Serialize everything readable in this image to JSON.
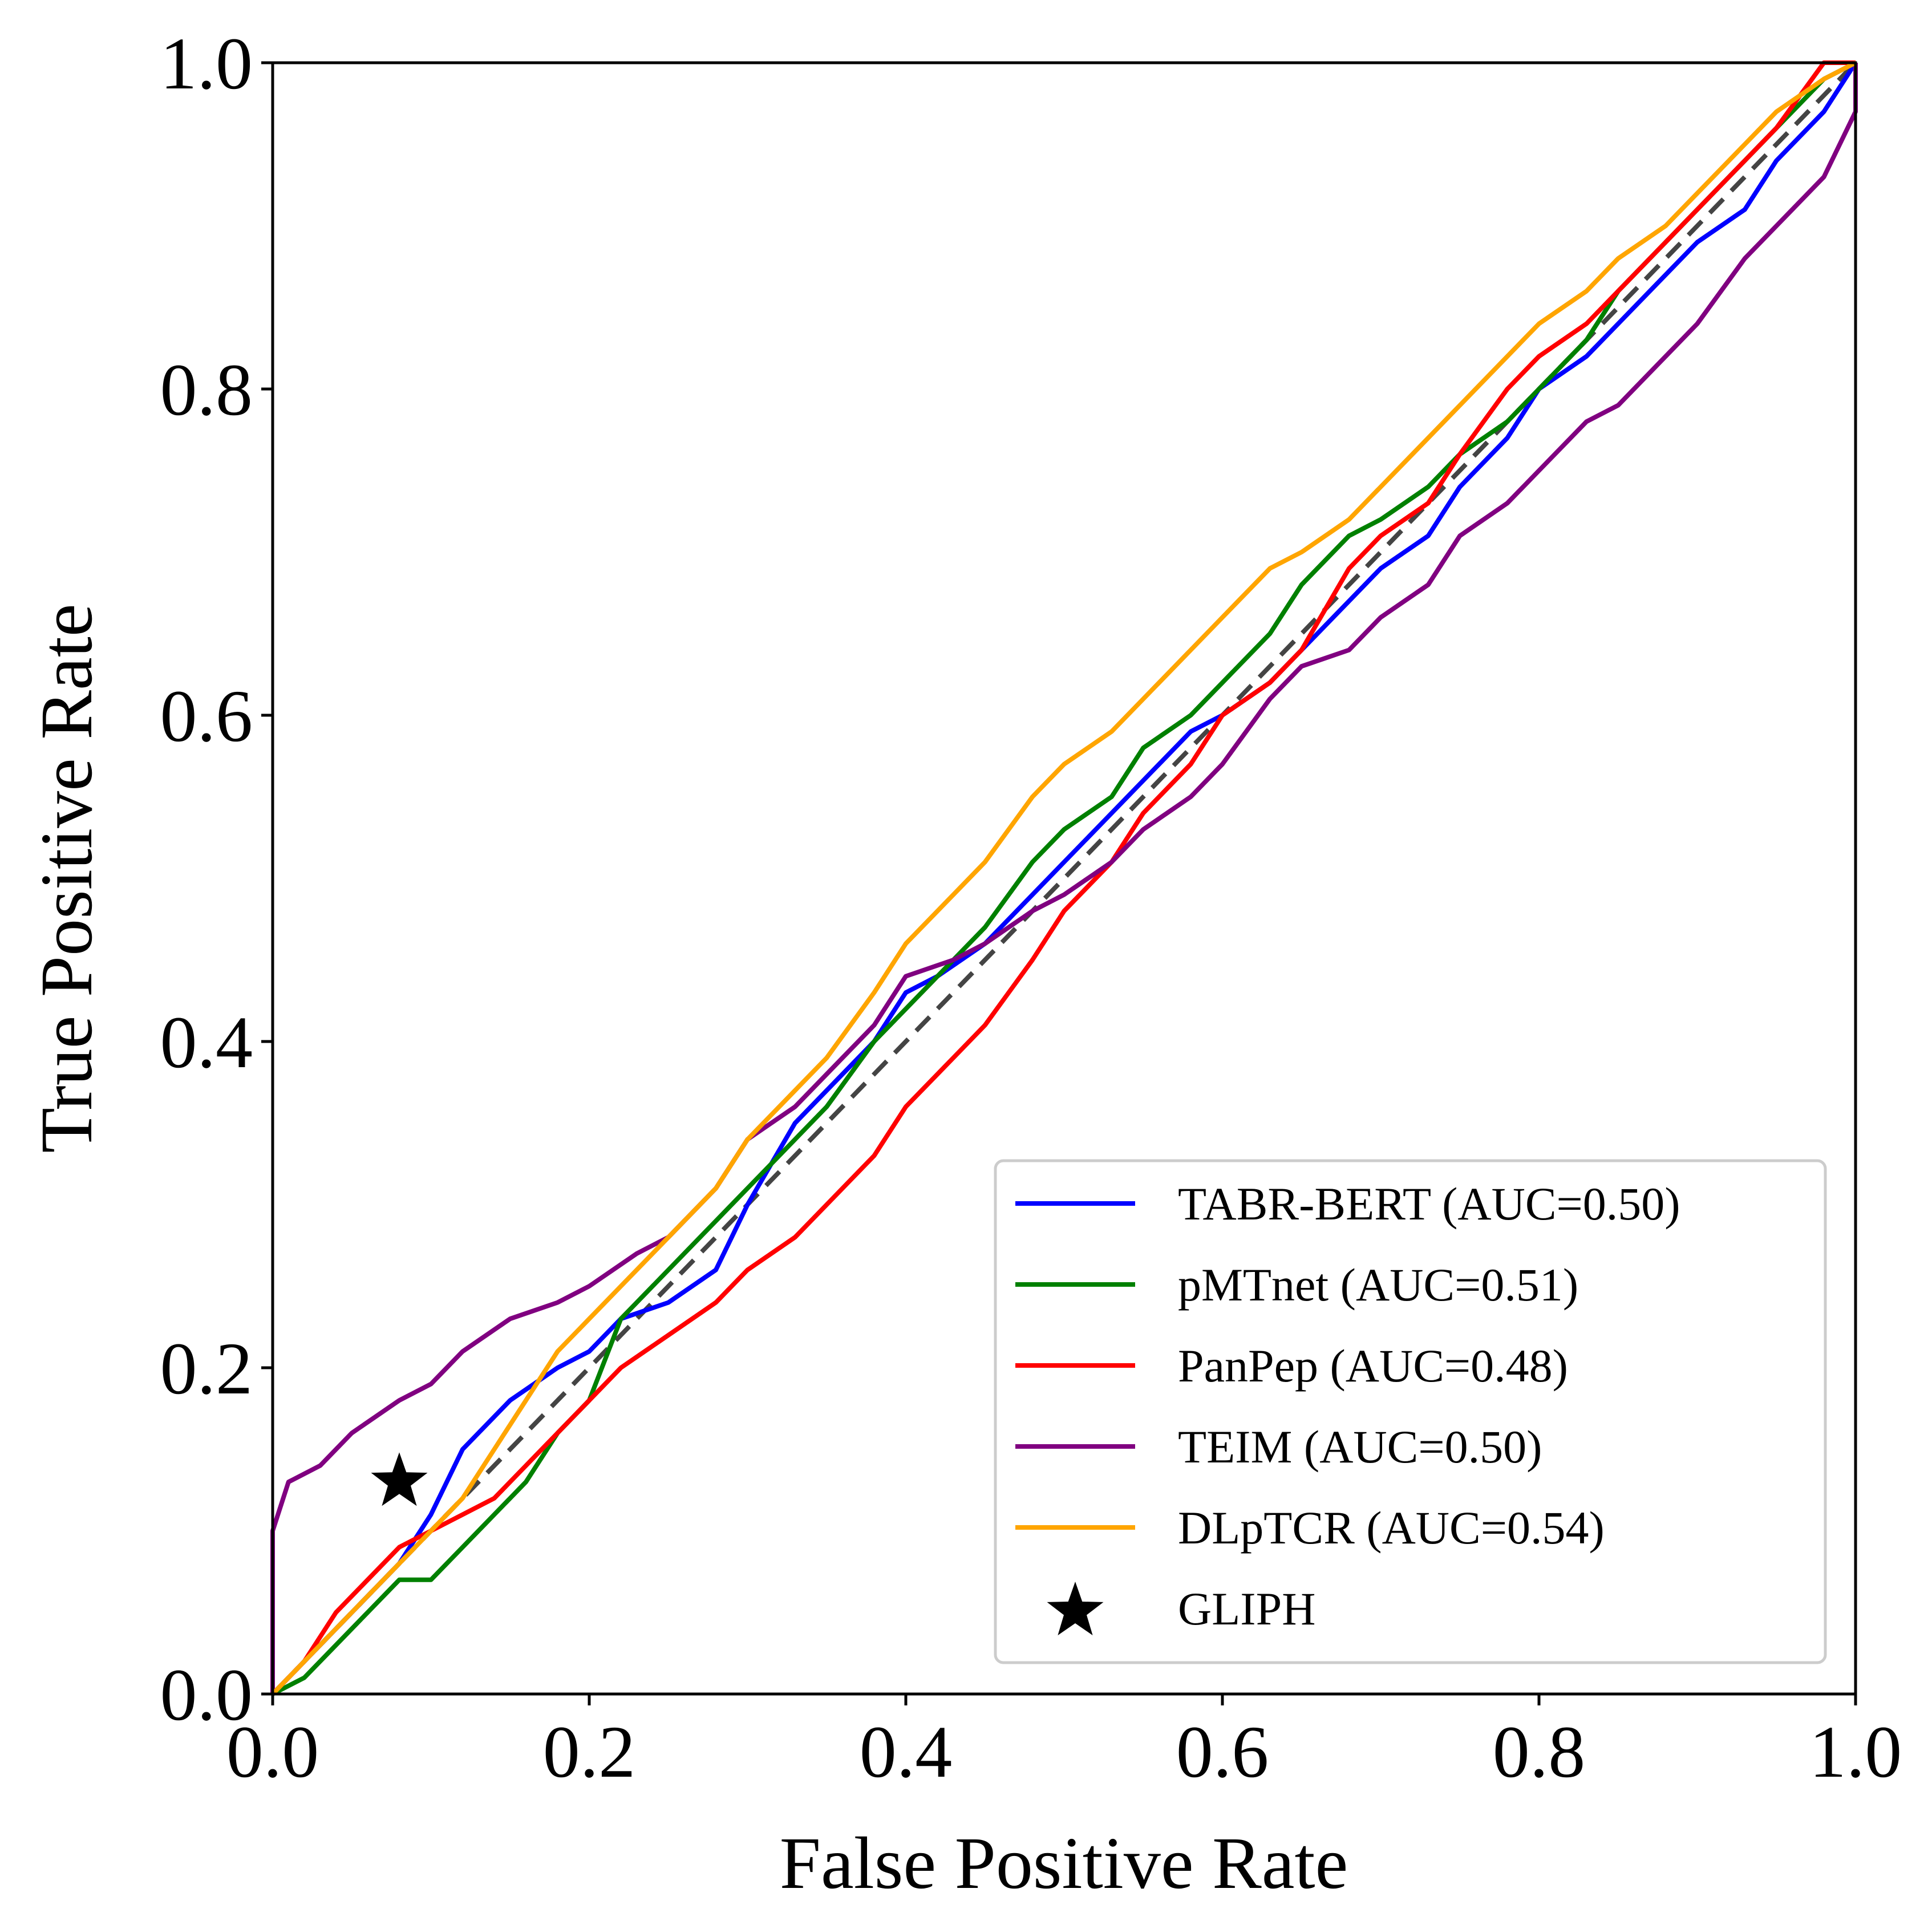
{
  "chart_data": {
    "type": "line",
    "title": "",
    "xlabel": "False Positive Rate",
    "ylabel": "True Positive Rate",
    "xlim": [
      0.0,
      1.0
    ],
    "ylim": [
      0.0,
      1.0
    ],
    "xticks": [
      "0.0",
      "0.2",
      "0.4",
      "0.6",
      "0.8",
      "1.0"
    ],
    "yticks": [
      "0.0",
      "0.2",
      "0.4",
      "0.6",
      "0.8",
      "1.0"
    ],
    "grid": false,
    "legend_position": "bottom-right",
    "reference_line": {
      "style": "dashed",
      "color": "#444444",
      "points": [
        [
          0,
          0
        ],
        [
          1,
          1
        ]
      ]
    },
    "series": [
      {
        "name": "TABR-BERT (AUC=0.50)",
        "color": "#0000ff",
        "points": [
          [
            0,
            0
          ],
          [
            0.02,
            0.02
          ],
          [
            0.05,
            0.05
          ],
          [
            0.08,
            0.08
          ],
          [
            0.1,
            0.11
          ],
          [
            0.12,
            0.15
          ],
          [
            0.15,
            0.18
          ],
          [
            0.18,
            0.2
          ],
          [
            0.2,
            0.21
          ],
          [
            0.22,
            0.23
          ],
          [
            0.25,
            0.24
          ],
          [
            0.28,
            0.26
          ],
          [
            0.3,
            0.3
          ],
          [
            0.33,
            0.35
          ],
          [
            0.35,
            0.37
          ],
          [
            0.38,
            0.4
          ],
          [
            0.4,
            0.43
          ],
          [
            0.42,
            0.44
          ],
          [
            0.45,
            0.46
          ],
          [
            0.48,
            0.49
          ],
          [
            0.5,
            0.51
          ],
          [
            0.53,
            0.54
          ],
          [
            0.55,
            0.56
          ],
          [
            0.58,
            0.59
          ],
          [
            0.6,
            0.6
          ],
          [
            0.63,
            0.62
          ],
          [
            0.65,
            0.64
          ],
          [
            0.68,
            0.67
          ],
          [
            0.7,
            0.69
          ],
          [
            0.73,
            0.71
          ],
          [
            0.75,
            0.74
          ],
          [
            0.78,
            0.77
          ],
          [
            0.8,
            0.8
          ],
          [
            0.83,
            0.82
          ],
          [
            0.85,
            0.84
          ],
          [
            0.88,
            0.87
          ],
          [
            0.9,
            0.89
          ],
          [
            0.93,
            0.91
          ],
          [
            0.95,
            0.94
          ],
          [
            0.98,
            0.97
          ],
          [
            1,
            1
          ]
        ]
      },
      {
        "name": "pMTnet (AUC=0.51)",
        "color": "#008000",
        "points": [
          [
            0,
            0
          ],
          [
            0.02,
            0.01
          ],
          [
            0.04,
            0.03
          ],
          [
            0.06,
            0.05
          ],
          [
            0.08,
            0.07
          ],
          [
            0.1,
            0.07
          ],
          [
            0.12,
            0.09
          ],
          [
            0.14,
            0.11
          ],
          [
            0.16,
            0.13
          ],
          [
            0.18,
            0.16
          ],
          [
            0.2,
            0.18
          ],
          [
            0.22,
            0.23
          ],
          [
            0.25,
            0.26
          ],
          [
            0.28,
            0.29
          ],
          [
            0.3,
            0.31
          ],
          [
            0.33,
            0.34
          ],
          [
            0.35,
            0.36
          ],
          [
            0.38,
            0.4
          ],
          [
            0.4,
            0.42
          ],
          [
            0.43,
            0.45
          ],
          [
            0.45,
            0.47
          ],
          [
            0.48,
            0.51
          ],
          [
            0.5,
            0.53
          ],
          [
            0.53,
            0.55
          ],
          [
            0.55,
            0.58
          ],
          [
            0.58,
            0.6
          ],
          [
            0.6,
            0.62
          ],
          [
            0.63,
            0.65
          ],
          [
            0.65,
            0.68
          ],
          [
            0.68,
            0.71
          ],
          [
            0.7,
            0.72
          ],
          [
            0.73,
            0.74
          ],
          [
            0.75,
            0.76
          ],
          [
            0.78,
            0.78
          ],
          [
            0.8,
            0.8
          ],
          [
            0.83,
            0.83
          ],
          [
            0.85,
            0.86
          ],
          [
            0.88,
            0.89
          ],
          [
            0.9,
            0.91
          ],
          [
            0.93,
            0.94
          ],
          [
            0.95,
            0.96
          ],
          [
            0.98,
            0.99
          ],
          [
            1,
            1
          ]
        ]
      },
      {
        "name": "PanPep (AUC=0.48)",
        "color": "#ff0000",
        "points": [
          [
            0,
            0
          ],
          [
            0.02,
            0.02
          ],
          [
            0.04,
            0.05
          ],
          [
            0.06,
            0.07
          ],
          [
            0.08,
            0.09
          ],
          [
            0.1,
            0.1
          ],
          [
            0.12,
            0.11
          ],
          [
            0.14,
            0.12
          ],
          [
            0.16,
            0.14
          ],
          [
            0.18,
            0.16
          ],
          [
            0.2,
            0.18
          ],
          [
            0.22,
            0.2
          ],
          [
            0.25,
            0.22
          ],
          [
            0.28,
            0.24
          ],
          [
            0.3,
            0.26
          ],
          [
            0.33,
            0.28
          ],
          [
            0.35,
            0.3
          ],
          [
            0.38,
            0.33
          ],
          [
            0.4,
            0.36
          ],
          [
            0.43,
            0.39
          ],
          [
            0.45,
            0.41
          ],
          [
            0.48,
            0.45
          ],
          [
            0.5,
            0.48
          ],
          [
            0.53,
            0.51
          ],
          [
            0.55,
            0.54
          ],
          [
            0.58,
            0.57
          ],
          [
            0.6,
            0.6
          ],
          [
            0.63,
            0.62
          ],
          [
            0.65,
            0.64
          ],
          [
            0.68,
            0.69
          ],
          [
            0.7,
            0.71
          ],
          [
            0.73,
            0.73
          ],
          [
            0.75,
            0.76
          ],
          [
            0.78,
            0.8
          ],
          [
            0.8,
            0.82
          ],
          [
            0.83,
            0.84
          ],
          [
            0.85,
            0.86
          ],
          [
            0.88,
            0.89
          ],
          [
            0.9,
            0.91
          ],
          [
            0.93,
            0.94
          ],
          [
            0.95,
            0.96
          ],
          [
            0.98,
            1
          ],
          [
            1,
            1
          ]
        ]
      },
      {
        "name": "TEIM (AUC=0.50)",
        "color": "#800080",
        "points": [
          [
            0,
            0
          ],
          [
            0,
            0.1
          ],
          [
            0.01,
            0.13
          ],
          [
            0.03,
            0.14
          ],
          [
            0.05,
            0.16
          ],
          [
            0.08,
            0.18
          ],
          [
            0.1,
            0.19
          ],
          [
            0.12,
            0.21
          ],
          [
            0.15,
            0.23
          ],
          [
            0.18,
            0.24
          ],
          [
            0.2,
            0.25
          ],
          [
            0.23,
            0.27
          ],
          [
            0.25,
            0.28
          ],
          [
            0.28,
            0.31
          ],
          [
            0.3,
            0.34
          ],
          [
            0.33,
            0.36
          ],
          [
            0.35,
            0.38
          ],
          [
            0.38,
            0.41
          ],
          [
            0.4,
            0.44
          ],
          [
            0.43,
            0.45
          ],
          [
            0.45,
            0.46
          ],
          [
            0.48,
            0.48
          ],
          [
            0.5,
            0.49
          ],
          [
            0.53,
            0.51
          ],
          [
            0.55,
            0.53
          ],
          [
            0.58,
            0.55
          ],
          [
            0.6,
            0.57
          ],
          [
            0.63,
            0.61
          ],
          [
            0.65,
            0.63
          ],
          [
            0.68,
            0.64
          ],
          [
            0.7,
            0.66
          ],
          [
            0.73,
            0.68
          ],
          [
            0.75,
            0.71
          ],
          [
            0.78,
            0.73
          ],
          [
            0.8,
            0.75
          ],
          [
            0.83,
            0.78
          ],
          [
            0.85,
            0.79
          ],
          [
            0.88,
            0.82
          ],
          [
            0.9,
            0.84
          ],
          [
            0.93,
            0.88
          ],
          [
            0.95,
            0.9
          ],
          [
            0.98,
            0.93
          ],
          [
            1,
            0.97
          ],
          [
            1,
            1
          ]
        ]
      },
      {
        "name": "DLpTCR (AUC=0.54)",
        "color": "#ffa500",
        "points": [
          [
            0,
            0
          ],
          [
            0.02,
            0.02
          ],
          [
            0.04,
            0.04
          ],
          [
            0.06,
            0.06
          ],
          [
            0.08,
            0.08
          ],
          [
            0.1,
            0.1
          ],
          [
            0.12,
            0.12
          ],
          [
            0.14,
            0.15
          ],
          [
            0.16,
            0.18
          ],
          [
            0.18,
            0.21
          ],
          [
            0.2,
            0.23
          ],
          [
            0.22,
            0.25
          ],
          [
            0.25,
            0.28
          ],
          [
            0.28,
            0.31
          ],
          [
            0.3,
            0.34
          ],
          [
            0.33,
            0.37
          ],
          [
            0.35,
            0.39
          ],
          [
            0.38,
            0.43
          ],
          [
            0.4,
            0.46
          ],
          [
            0.43,
            0.49
          ],
          [
            0.45,
            0.51
          ],
          [
            0.48,
            0.55
          ],
          [
            0.5,
            0.57
          ],
          [
            0.53,
            0.59
          ],
          [
            0.55,
            0.61
          ],
          [
            0.58,
            0.64
          ],
          [
            0.6,
            0.66
          ],
          [
            0.63,
            0.69
          ],
          [
            0.65,
            0.7
          ],
          [
            0.68,
            0.72
          ],
          [
            0.7,
            0.74
          ],
          [
            0.73,
            0.77
          ],
          [
            0.75,
            0.79
          ],
          [
            0.78,
            0.82
          ],
          [
            0.8,
            0.84
          ],
          [
            0.83,
            0.86
          ],
          [
            0.85,
            0.88
          ],
          [
            0.88,
            0.9
          ],
          [
            0.9,
            0.92
          ],
          [
            0.93,
            0.95
          ],
          [
            0.95,
            0.97
          ],
          [
            0.98,
            0.99
          ],
          [
            1,
            1
          ]
        ]
      }
    ],
    "markers": [
      {
        "name": "GLIPH",
        "shape": "star",
        "color": "#000000",
        "x": 0.08,
        "y": 0.13
      }
    ]
  }
}
